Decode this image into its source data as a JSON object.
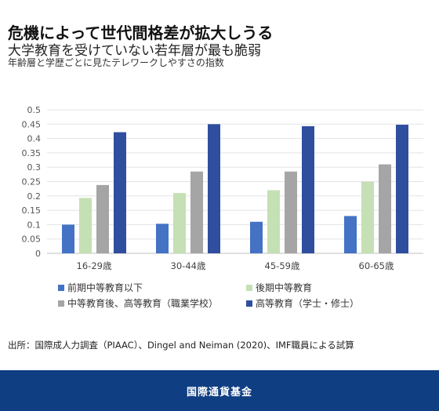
{
  "header": {
    "title": "危機によって世代間格差が拡大しうる",
    "subtitle": "大学教育を受けていない若年層が最も脆弱",
    "caption": "年齢層と学歴ごとに見たテレワークしやすさの指数"
  },
  "chart_data": {
    "type": "bar",
    "categories": [
      "16-29歳",
      "30-44歳",
      "45-59歳",
      "60-65歳"
    ],
    "series": [
      {
        "name": "前期中等教育以下",
        "color": "#4472c4",
        "values": [
          0.1,
          0.103,
          0.11,
          0.13
        ]
      },
      {
        "name": "後期中等教育",
        "color": "#c5e0b4",
        "values": [
          0.193,
          0.21,
          0.22,
          0.25
        ]
      },
      {
        "name": "中等教育後、高等教育（職業学校）",
        "color": "#a5a5a5",
        "values": [
          0.238,
          0.285,
          0.285,
          0.31
        ]
      },
      {
        "name": "高等教育（学士・修士）",
        "color": "#2f4f9e",
        "values": [
          0.422,
          0.45,
          0.443,
          0.448
        ]
      }
    ],
    "yticks": [
      "0",
      "0.05",
      "0.1",
      "0.15",
      "0.2",
      "0.25",
      "0.3",
      "0.35",
      "0.4",
      "0.45",
      "0.5"
    ],
    "ylim": [
      0,
      0.5
    ],
    "grid": true,
    "legend_position": "bottom"
  },
  "source": "出所：国際成人力調査（PIAAC）、Dingel and Neiman (2020)、IMF職員による試算",
  "footer": {
    "text": "国際通貨基金"
  }
}
